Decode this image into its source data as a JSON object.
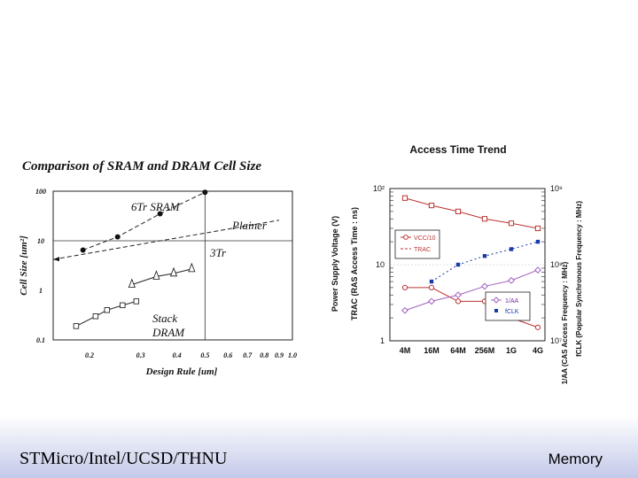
{
  "footer": {
    "left_text": "STMicro/Intel/UCSD/THNU",
    "right_text": "Memory"
  },
  "chart_data": [
    {
      "type": "line",
      "title": "Comparison of SRAM and DRAM Cell Size",
      "xlabel": "Design Rule [um]",
      "ylabel": "Cell Size [um²]",
      "x_scale": "log",
      "y_scale": "log",
      "xlim": [
        0.15,
        1.0
      ],
      "ylim": [
        0.1,
        100
      ],
      "x_ticks": [
        "0.2",
        "0.3",
        "0.4",
        "0.5",
        "0.6",
        "0.7",
        "0.8",
        "0.9",
        "1.0"
      ],
      "y_ticks": [
        "0.1",
        "1",
        "10",
        "100"
      ],
      "series": [
        {
          "name": "6Tr SRAM",
          "marker": "circle-filled",
          "line": "dashed",
          "points": [
            [
              0.19,
              6.5
            ],
            [
              0.25,
              12
            ],
            [
              0.35,
              35
            ],
            [
              0.5,
              95
            ]
          ]
        },
        {
          "name": "Stack DRAM",
          "marker": "square-open",
          "line": "solid",
          "points": [
            [
              0.18,
              0.19
            ],
            [
              0.21,
              0.3
            ],
            [
              0.23,
              0.4
            ],
            [
              0.26,
              0.5
            ],
            [
              0.29,
              0.6
            ]
          ]
        },
        {
          "name": "3Tr",
          "marker": "triangle-open",
          "line": "solid",
          "points": [
            [
              0.28,
              1.3
            ],
            [
              0.34,
              1.9
            ],
            [
              0.39,
              2.2
            ],
            [
              0.45,
              2.7
            ]
          ]
        },
        {
          "name": "Plainer",
          "marker": "none",
          "line": "dashed",
          "points": [
            [
              0.15,
              4.2
            ],
            [
              0.9,
              26
            ]
          ]
        }
      ],
      "annotations": [
        "6Tr SRAM",
        "Plainer",
        "3Tr",
        "Stack",
        "DRAM"
      ]
    },
    {
      "type": "line",
      "title": "Access Time Trend",
      "categories": [
        "4M",
        "16M",
        "64M",
        "256M",
        "1G",
        "4G"
      ],
      "y_left_label_outer": "Power Supply Voltage (V)",
      "y_left_label": "TRAC (RAS Access Time : ns)",
      "y_right_label": "1/AA (CAS Access Frequency : MHz)",
      "y_right_label_2": "fCLK (Popular Synchronous Frequency : MHz)",
      "y_left_scale": "log",
      "y_left_ticks": [
        "1",
        "10",
        "10²"
      ],
      "y_right_ticks": [
        "10⁷",
        "10⁸",
        "10⁹"
      ],
      "legend_top": [
        "VCC/10",
        "TRAC"
      ],
      "legend_bottom": [
        "1/AA",
        "fCLK"
      ],
      "series": [
        {
          "name": "VCC/10",
          "marker": "circle-open",
          "axis": "left",
          "values": [
            5.0,
            5.0,
            3.3,
            3.3,
            2.0,
            1.5
          ]
        },
        {
          "name": "TRAC",
          "marker": "square-open",
          "axis": "left",
          "values": [
            75,
            60,
            50,
            40,
            35,
            30
          ]
        },
        {
          "name": "1/AA",
          "marker": "diamond-open",
          "axis": "right",
          "values": [
            25000000.0,
            33000000.0,
            40000000.0,
            52000000.0,
            62000000.0,
            85000000.0
          ]
        },
        {
          "name": "fCLK",
          "marker": "square-filled",
          "axis": "right",
          "values": [
            null,
            60000000.0,
            100000000.0,
            130000000.0,
            160000000.0,
            200000000.0
          ]
        }
      ]
    }
  ]
}
